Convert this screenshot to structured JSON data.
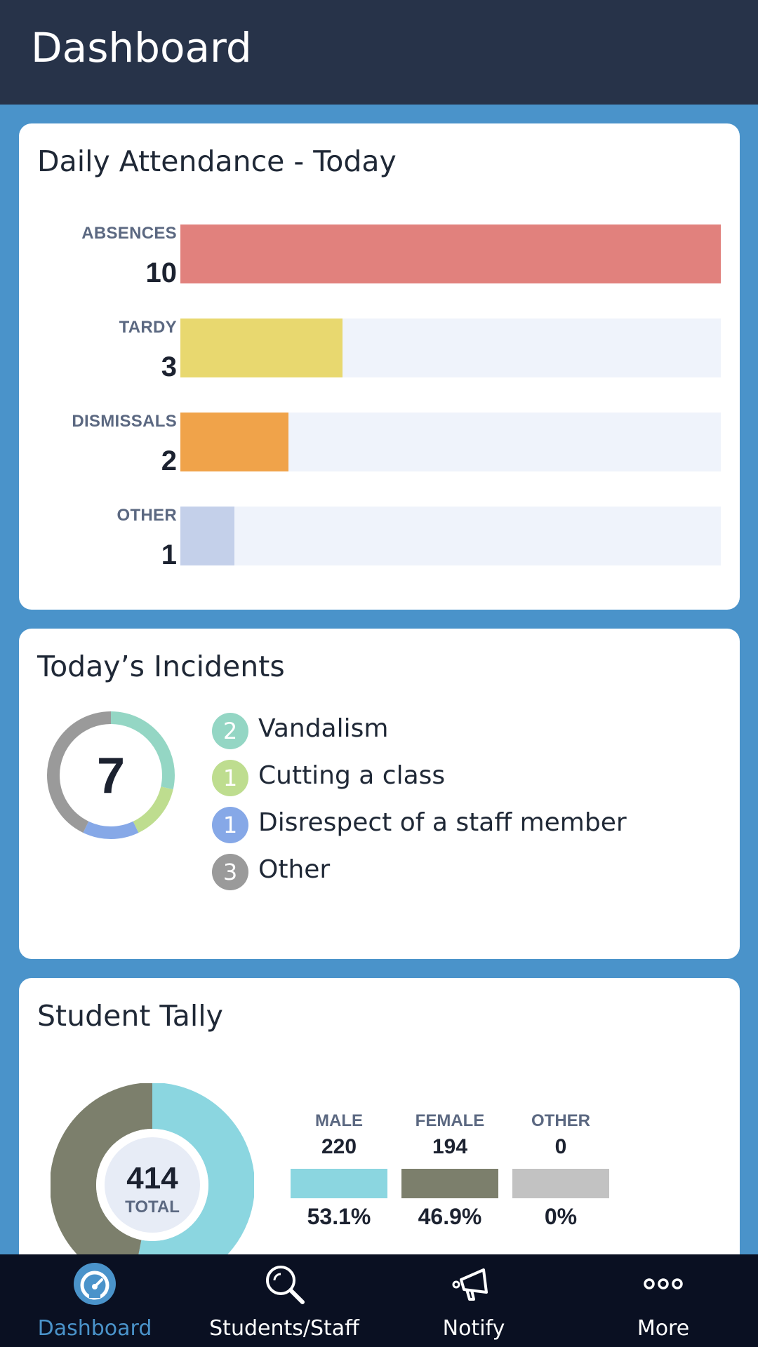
{
  "header": {
    "title": "Dashboard"
  },
  "attendance": {
    "title": "Daily Attendance - Today",
    "max": 10,
    "rows": [
      {
        "label": "ABSENCES",
        "value": "10",
        "count": 10,
        "color": "#e1817d"
      },
      {
        "label": "TARDY",
        "value": "3",
        "count": 3,
        "color": "#e8d86f"
      },
      {
        "label": "DISMISSALS",
        "value": "2",
        "count": 2,
        "color": "#f0a34a"
      },
      {
        "label": "OTHER",
        "value": "1",
        "count": 1,
        "color": "#c4d0ea"
      }
    ]
  },
  "incidents": {
    "title": "Today’s Incidents",
    "total": "7",
    "items": [
      {
        "count": "2",
        "n": 2,
        "label": "Vandalism",
        "color": "#94d6c4"
      },
      {
        "count": "1",
        "n": 1,
        "label": "Cutting a class",
        "color": "#bedd8f"
      },
      {
        "count": "1",
        "n": 1,
        "label": "Disrespect of a staff member",
        "color": "#86a8e7"
      },
      {
        "count": "3",
        "n": 3,
        "label": "Other",
        "color": "#9a9a9a"
      }
    ]
  },
  "tally": {
    "title": "Student Tally",
    "total": "414",
    "total_label": "TOTAL",
    "groups": [
      {
        "label": "MALE",
        "count": "220",
        "pct": "53.1%",
        "fraction": 0.531,
        "color": "#8bd6e0"
      },
      {
        "label": "FEMALE",
        "count": "194",
        "pct": "46.9%",
        "fraction": 0.469,
        "color": "#7c7f6c"
      },
      {
        "label": "OTHER",
        "count": "0",
        "pct": "0%",
        "fraction": 0,
        "color": "#c2c2c2"
      }
    ]
  },
  "nav": {
    "active_color": "#4a93ca",
    "items": [
      {
        "label": "Dashboard",
        "icon": "dashboard-gauge-icon",
        "active": true
      },
      {
        "label": "Students/Staff",
        "icon": "search-icon",
        "active": false
      },
      {
        "label": "Notify",
        "icon": "megaphone-icon",
        "active": false
      },
      {
        "label": "More",
        "icon": "more-dots-icon",
        "active": false
      }
    ]
  }
}
